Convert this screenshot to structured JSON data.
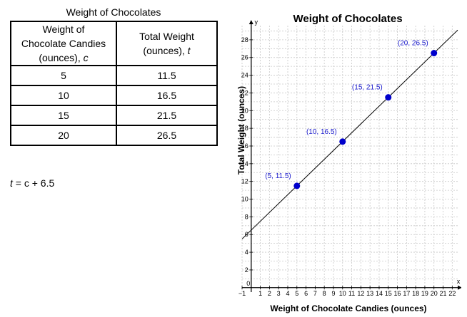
{
  "table": {
    "title": "Weight of Chocolates",
    "headers": [
      [
        "Weight of",
        "Chocolate Candies",
        "(ounces), ",
        "c"
      ],
      [
        "Total Weight",
        "(ounces), ",
        "t"
      ]
    ],
    "rows": [
      [
        "5",
        "11.5"
      ],
      [
        "10",
        "16.5"
      ],
      [
        "15",
        "21.5"
      ],
      [
        "20",
        "26.5"
      ]
    ]
  },
  "equation": {
    "var": "t",
    "rest": " = c + 6.5"
  },
  "chart_data": {
    "type": "scatter",
    "title": "Weight of Chocolates",
    "xlabel": "Weight of Chocolate Candies (ounces)",
    "ylabel": "Total Weight (ounces)",
    "x_axis_letter": "x",
    "y_axis_letter": "y",
    "origin_label": "0",
    "xlim": [
      -1,
      22.6
    ],
    "ylim": [
      -0.5,
      29.6
    ],
    "x_ticks": [
      "−1",
      "1",
      "2",
      "3",
      "4",
      "5",
      "6",
      "7",
      "8",
      "9",
      "10",
      "11",
      "12",
      "13",
      "14",
      "15",
      "16",
      "17",
      "18",
      "19",
      "20",
      "21",
      "22"
    ],
    "y_ticks": [
      "2",
      "4",
      "6",
      "8",
      "10",
      "12",
      "14",
      "16",
      "18",
      "20",
      "22",
      "24",
      "26",
      "28"
    ],
    "grid": true,
    "points": [
      {
        "x": 5,
        "y": 11.5,
        "label": "(5, 11.5)"
      },
      {
        "x": 10,
        "y": 16.5,
        "label": "(10, 16.5)"
      },
      {
        "x": 15,
        "y": 21.5,
        "label": "(15, 21.5)"
      },
      {
        "x": 20,
        "y": 26.5,
        "label": "(20, 26.5)"
      }
    ],
    "line": {
      "slope": 1,
      "intercept": 6.5
    },
    "colors": {
      "points": "#0000cc",
      "labels": "#1a1acc",
      "line": "#000000",
      "grid": "#c8c8c8"
    }
  }
}
